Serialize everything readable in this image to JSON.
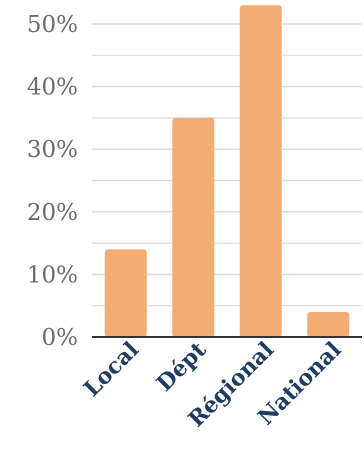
{
  "chart_data": {
    "type": "bar",
    "title": "",
    "xlabel": "",
    "ylabel": "",
    "categories": [
      "Local",
      "Dépt",
      "Régional",
      "National"
    ],
    "values": [
      14,
      35,
      53,
      4
    ],
    "ylim": [
      0,
      50
    ],
    "y_ticks": [
      0,
      10,
      20,
      30,
      40,
      50
    ],
    "y_tick_labels": [
      "0%",
      "10%",
      "20%",
      "30%",
      "40%",
      "50%"
    ],
    "grid": true,
    "colors": {
      "bar": "#f3ad72",
      "grid": "#dcdcdc",
      "axis": "#333333",
      "tick_text": "#6b6b6b",
      "category_text": "#1f3c63"
    }
  }
}
